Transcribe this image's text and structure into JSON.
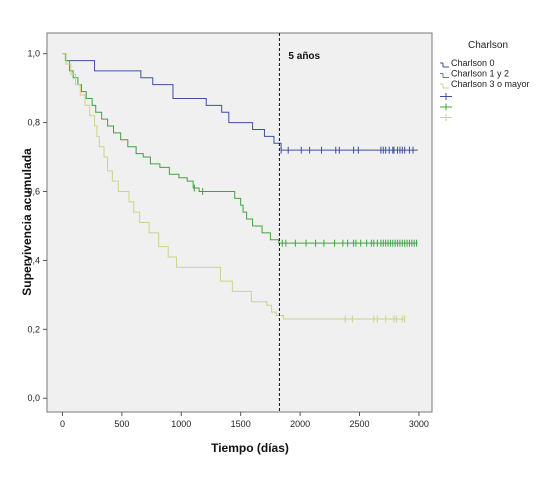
{
  "chart_data": {
    "type": "line",
    "subtype": "kaplan-meier",
    "xlabel": "Tiempo (días)",
    "ylabel": "Supervivencia acumulada",
    "xlim": [
      -130,
      3110
    ],
    "ylim": [
      -0.04,
      1.06
    ],
    "xticks": [
      "0",
      "500",
      "1000",
      "1500",
      "2000",
      "2500",
      "3000"
    ],
    "xtick_values": [
      0,
      500,
      1000,
      1500,
      2000,
      2500,
      3000
    ],
    "yticks": [
      "0,0",
      "0,2",
      "0,4",
      "0,6",
      "0,8",
      "1,0"
    ],
    "ytick_values": [
      0,
      0.2,
      0.4,
      0.6,
      0.8,
      1.0
    ],
    "grid": false,
    "legend": {
      "title": "Charlson",
      "placement": "right",
      "entries": [
        "Charlson 0",
        "Charlson 1 y 2",
        "Charlson 3 o mayor"
      ]
    },
    "annotation": {
      "text": "5 años",
      "vline_x": 1826
    },
    "series": [
      {
        "name": "Charlson 0",
        "color": "#3f4fa3",
        "steps": [
          [
            0,
            1.0
          ],
          [
            30,
            0.98
          ],
          [
            270,
            0.95
          ],
          [
            660,
            0.93
          ],
          [
            760,
            0.91
          ],
          [
            930,
            0.87
          ],
          [
            1210,
            0.85
          ],
          [
            1340,
            0.83
          ],
          [
            1400,
            0.8
          ],
          [
            1600,
            0.78
          ],
          [
            1700,
            0.76
          ],
          [
            1780,
            0.74
          ],
          [
            1840,
            0.72
          ],
          [
            2990,
            0.72
          ]
        ],
        "censored": [
          1840,
          1900,
          2010,
          2080,
          2180,
          2300,
          2330,
          2450,
          2490,
          2680,
          2700,
          2720,
          2750,
          2780,
          2790,
          2820,
          2840,
          2860,
          2880,
          2920,
          2950
        ]
      },
      {
        "name": "Charlson 1 y 2",
        "color": "#3fa33f",
        "steps": [
          [
            0,
            1.0
          ],
          [
            25,
            0.98
          ],
          [
            60,
            0.95
          ],
          [
            90,
            0.93
          ],
          [
            130,
            0.91
          ],
          [
            160,
            0.89
          ],
          [
            200,
            0.87
          ],
          [
            250,
            0.85
          ],
          [
            280,
            0.83
          ],
          [
            330,
            0.81
          ],
          [
            380,
            0.79
          ],
          [
            430,
            0.77
          ],
          [
            490,
            0.75
          ],
          [
            550,
            0.73
          ],
          [
            620,
            0.71
          ],
          [
            680,
            0.7
          ],
          [
            740,
            0.68
          ],
          [
            820,
            0.67
          ],
          [
            900,
            0.65
          ],
          [
            980,
            0.64
          ],
          [
            1050,
            0.63
          ],
          [
            1100,
            0.61
          ],
          [
            1150,
            0.6
          ],
          [
            1450,
            0.58
          ],
          [
            1500,
            0.56
          ],
          [
            1520,
            0.54
          ],
          [
            1550,
            0.52
          ],
          [
            1600,
            0.5
          ],
          [
            1680,
            0.48
          ],
          [
            1750,
            0.46
          ],
          [
            1820,
            0.45
          ],
          [
            2990,
            0.45
          ]
        ],
        "censored": [
          1110,
          1180,
          1850,
          1880,
          1960,
          2050,
          2130,
          2200,
          2290,
          2360,
          2400,
          2450,
          2470,
          2510,
          2560,
          2600,
          2620,
          2650,
          2680,
          2700,
          2720,
          2740,
          2760,
          2780,
          2800,
          2820,
          2840,
          2860,
          2880,
          2900,
          2920,
          2940,
          2960,
          2980
        ]
      },
      {
        "name": "Charlson 3 o mayor",
        "color": "#c9d48a",
        "steps": [
          [
            0,
            1.0
          ],
          [
            30,
            0.97
          ],
          [
            70,
            0.94
          ],
          [
            110,
            0.91
          ],
          [
            150,
            0.88
          ],
          [
            190,
            0.85
          ],
          [
            230,
            0.82
          ],
          [
            270,
            0.79
          ],
          [
            290,
            0.76
          ],
          [
            310,
            0.73
          ],
          [
            350,
            0.7
          ],
          [
            380,
            0.66
          ],
          [
            420,
            0.63
          ],
          [
            470,
            0.6
          ],
          [
            560,
            0.57
          ],
          [
            600,
            0.54
          ],
          [
            650,
            0.51
          ],
          [
            730,
            0.48
          ],
          [
            810,
            0.44
          ],
          [
            890,
            0.41
          ],
          [
            960,
            0.38
          ],
          [
            1330,
            0.34
          ],
          [
            1430,
            0.31
          ],
          [
            1590,
            0.28
          ],
          [
            1720,
            0.27
          ],
          [
            1760,
            0.25
          ],
          [
            1800,
            0.24
          ],
          [
            1860,
            0.23
          ],
          [
            2880,
            0.23
          ]
        ],
        "censored": [
          2380,
          2440,
          2620,
          2650,
          2720,
          2790,
          2810,
          2860,
          2880
        ]
      }
    ]
  }
}
